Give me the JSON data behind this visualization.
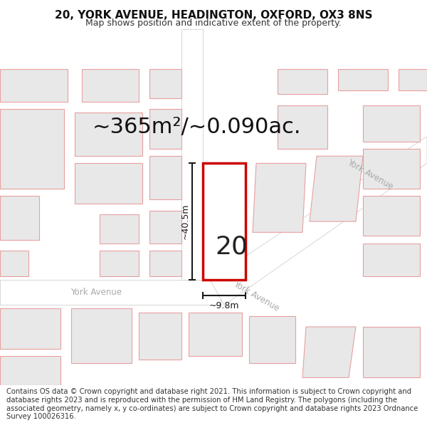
{
  "title_line1": "20, YORK AVENUE, HEADINGTON, OXFORD, OX3 8NS",
  "title_line2": "Map shows position and indicative extent of the property.",
  "area_label": "~365m²/~0.090ac.",
  "width_label": "~9.8m",
  "height_label": "~40.5m",
  "number_label": "20",
  "footer_text": "Contains OS data © Crown copyright and database right 2021. This information is subject to Crown copyright and database rights 2023 and is reproduced with the permission of HM Land Registry. The polygons (including the associated geometry, namely x, y co-ordinates) are subject to Crown copyright and database rights 2023 Ordnance Survey 100026316.",
  "bg_color": "#ffffff",
  "map_bg": "#ffffff",
  "building_fill": "#e8e8e8",
  "building_edge": "#e8a0a0",
  "road_fill": "#ffffff",
  "road_edge": "#c8c8c8",
  "highlight_fill": "#ffffff",
  "highlight_edge": "#cc0000",
  "street_label_color": "#aaaaaa",
  "dim_line_color": "#1a1a1a",
  "title_fontsize": 11,
  "subtitle_fontsize": 9,
  "area_fontsize": 22,
  "number_fontsize": 26,
  "dim_fontsize": 9,
  "footer_fontsize": 7.2
}
